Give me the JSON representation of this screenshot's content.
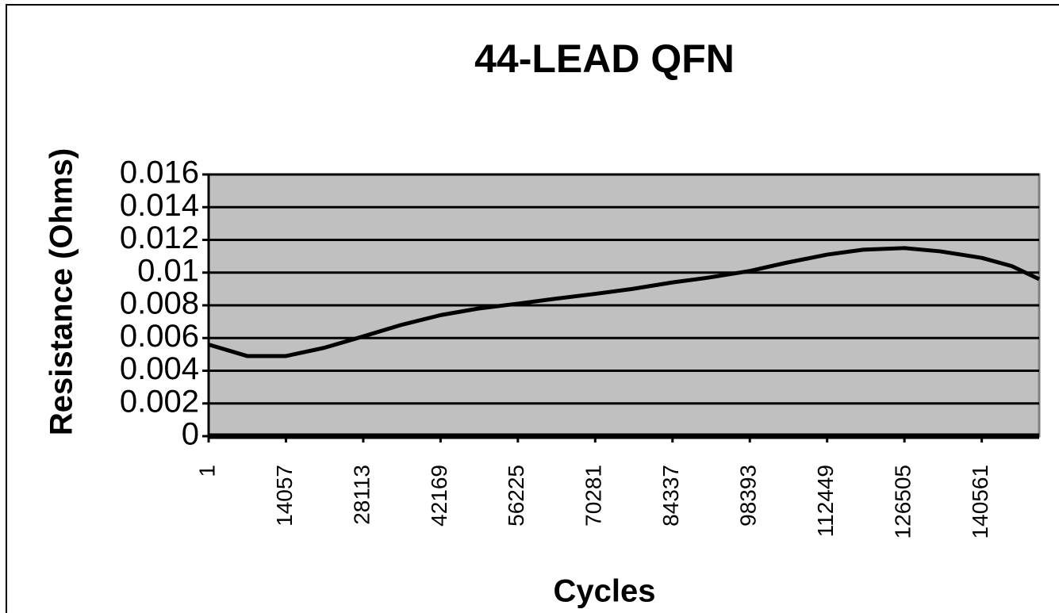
{
  "chart_data": {
    "type": "line",
    "title": "44-LEAD QFN",
    "x_label": "Cycles",
    "y_label": "Resistance (Ohms)",
    "x": [
      1,
      7000,
      14057,
      21000,
      28113,
      35000,
      42169,
      49000,
      56225,
      63000,
      70281,
      77000,
      84337,
      91000,
      98393,
      105000,
      112449,
      119000,
      126505,
      133000,
      140561,
      146000,
      151000
    ],
    "series": [
      {
        "name": "Resistance",
        "color": "#000000",
        "values": [
          0.0056,
          0.0049,
          0.0049,
          0.0054,
          0.0061,
          0.0068,
          0.0074,
          0.0078,
          0.0081,
          0.0084,
          0.0087,
          0.009,
          0.0094,
          0.0097,
          0.0101,
          0.0106,
          0.0111,
          0.0114,
          0.0115,
          0.0113,
          0.0109,
          0.0104,
          0.0096
        ]
      }
    ],
    "xlim": [
      1,
      151000
    ],
    "xticks": [
      1,
      14057,
      28113,
      42169,
      56225,
      70281,
      84337,
      98393,
      112449,
      126505,
      140561
    ],
    "ylim": [
      0,
      0.016
    ],
    "yticks": [
      0,
      0.002,
      0.004,
      0.006,
      0.008,
      0.01,
      0.012,
      0.014,
      0.016
    ],
    "grid": true
  }
}
